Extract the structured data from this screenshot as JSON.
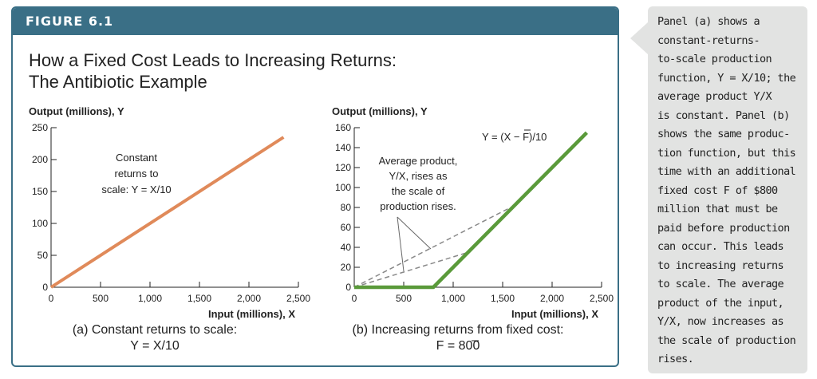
{
  "figure": {
    "label": "FIGURE 6.1",
    "title_lines": [
      "How a Fixed Cost Leads to Increasing Returns:",
      "The Antibiotic Example"
    ]
  },
  "colors": {
    "header": "#3a6f86",
    "panel_a_line": "#e08a5a",
    "panel_b_line": "#5a9a3a",
    "dashed": "#888888",
    "sidebar_bg": "#e2e3e2"
  },
  "chart_data": [
    {
      "type": "line",
      "ylabel": "Output (millions), Y",
      "xlabel": "Input (millions), X",
      "caption_lines": [
        "(a) Constant returns to scale:",
        "Y = X/10"
      ],
      "xlim": [
        0,
        2500
      ],
      "ylim": [
        0,
        250
      ],
      "x_ticks": [
        0,
        500,
        1000,
        1500,
        2000,
        2500
      ],
      "x_tick_labels": [
        "0",
        "500",
        "1,000",
        "1,500",
        "2,000",
        "2,500"
      ],
      "y_ticks": [
        0,
        50,
        100,
        150,
        200,
        250
      ],
      "y_tick_labels": [
        "0",
        "50",
        "100",
        "150",
        "200",
        "250"
      ],
      "series": [
        {
          "x": [
            0,
            2350
          ],
          "y": [
            0,
            235
          ]
        }
      ],
      "annotations": [
        {
          "lines": [
            "Constant",
            "returns to",
            "scale: Y = X/10"
          ]
        }
      ]
    },
    {
      "type": "line",
      "ylabel": "Output (millions), Y",
      "xlabel": "Input (millions), X",
      "caption_lines": [
        "(b) Increasing returns from fixed cost:",
        "F = 800"
      ],
      "xlim": [
        0,
        2500
      ],
      "ylim": [
        0,
        160
      ],
      "x_ticks": [
        0,
        500,
        1000,
        1500,
        2000,
        2500
      ],
      "x_tick_labels": [
        "0",
        "500",
        "1,000",
        "1,500",
        "2,000",
        "2,500"
      ],
      "y_ticks": [
        0,
        20,
        40,
        60,
        80,
        100,
        120,
        140,
        160
      ],
      "y_tick_labels": [
        "0",
        "20",
        "40",
        "60",
        "80",
        "100",
        "120",
        "140",
        "160"
      ],
      "series": [
        {
          "label": "Y = (X − F)/10",
          "x": [
            0,
            800,
            2350
          ],
          "y": [
            0,
            0,
            155
          ]
        }
      ],
      "average_product_rays": [
        {
          "x": [
            0,
            1620
          ],
          "y": [
            0,
            82
          ]
        },
        {
          "x": [
            0,
            1150
          ],
          "y": [
            0,
            35
          ]
        }
      ],
      "annotations": [
        {
          "lines": [
            "Average product,",
            "Y/X, rises as",
            "the scale of",
            "production rises."
          ]
        }
      ]
    }
  ],
  "sidebar": {
    "lines": [
      "Panel (a) shows a",
      "constant-returns-",
      "to-scale production",
      "function, Y = X/10; the",
      "average product Y/X",
      "is constant. Panel (b)",
      "shows the same produc-",
      "tion function, but this",
      "time with an additional",
      "fixed cost F of $800",
      "million that must be",
      "paid before production",
      "can occur. This leads",
      "to increasing returns",
      "to scale. The average",
      "product of the input,",
      "Y/X, now increases as",
      "the scale of production",
      "rises."
    ]
  }
}
